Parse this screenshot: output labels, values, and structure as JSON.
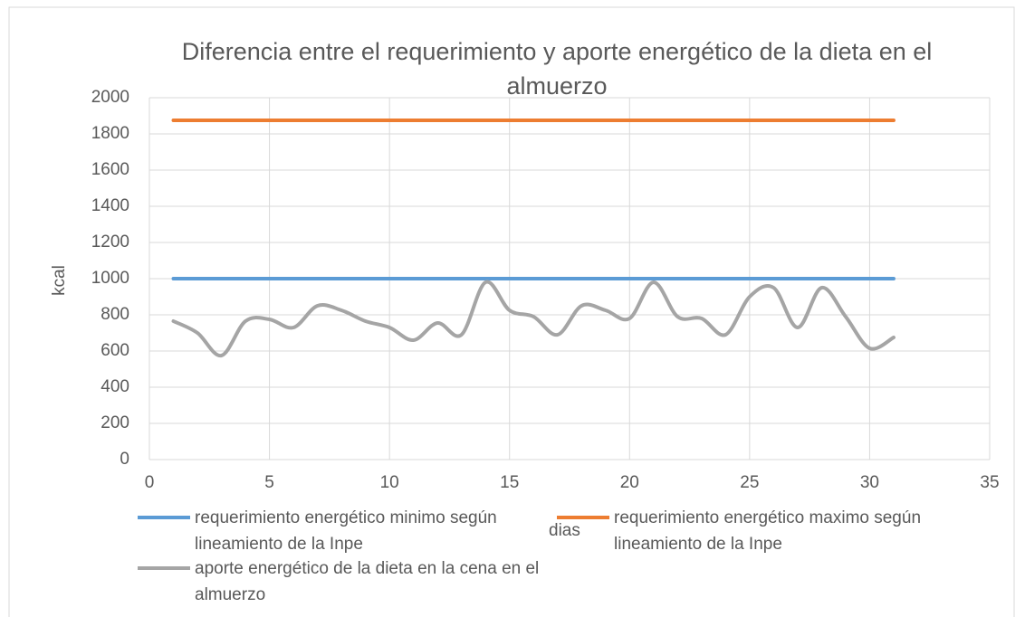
{
  "chart_data": {
    "type": "line",
    "title": "Diferencia entre el requerimiento y aporte energético de la dieta en el almuerzo",
    "x_label": "dias",
    "y_label": "kcal",
    "x": [
      1,
      2,
      3,
      4,
      5,
      6,
      7,
      8,
      9,
      10,
      11,
      12,
      13,
      14,
      15,
      16,
      17,
      18,
      19,
      20,
      21,
      22,
      23,
      24,
      25,
      26,
      27,
      28,
      29,
      30,
      31
    ],
    "series": [
      {
        "name": "requerimiento energético minimo según lineamiento de la Inpe",
        "color": "#5b9bd5",
        "values": [
          1000,
          1000,
          1000,
          1000,
          1000,
          1000,
          1000,
          1000,
          1000,
          1000,
          1000,
          1000,
          1000,
          1000,
          1000,
          1000,
          1000,
          1000,
          1000,
          1000,
          1000,
          1000,
          1000,
          1000,
          1000,
          1000,
          1000,
          1000,
          1000,
          1000,
          1000
        ]
      },
      {
        "name": "requerimiento energético maximo según lineamiento de la Inpe",
        "color": "#ed7d31",
        "values": [
          1875,
          1875,
          1875,
          1875,
          1875,
          1875,
          1875,
          1875,
          1875,
          1875,
          1875,
          1875,
          1875,
          1875,
          1875,
          1875,
          1875,
          1875,
          1875,
          1875,
          1875,
          1875,
          1875,
          1875,
          1875,
          1875,
          1875,
          1875,
          1875,
          1875,
          1875
        ]
      },
      {
        "name": "aporte energético de la dieta en la cena en el almuerzo",
        "color": "#a5a5a5",
        "values": [
          765,
          700,
          575,
          765,
          775,
          730,
          850,
          825,
          765,
          730,
          660,
          755,
          690,
          980,
          825,
          790,
          690,
          850,
          825,
          780,
          980,
          790,
          780,
          690,
          900,
          950,
          730,
          950,
          790,
          615,
          675
        ]
      }
    ],
    "xlim": [
      0,
      35
    ],
    "xticks": [
      0,
      5,
      10,
      15,
      20,
      25,
      30,
      35
    ],
    "ylim": [
      0,
      2000
    ],
    "yticks": [
      0,
      200,
      400,
      600,
      800,
      1000,
      1200,
      1400,
      1600,
      1800,
      2000
    ],
    "grid": true
  }
}
